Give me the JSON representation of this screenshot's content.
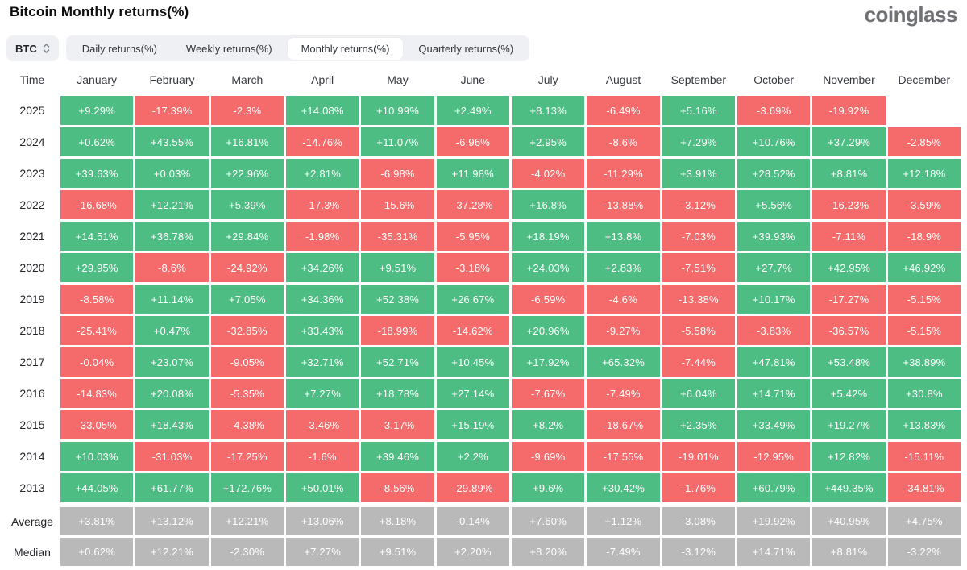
{
  "header": {
    "title": "Bitcoin Monthly returns(%)",
    "logo": "coinglass"
  },
  "controls": {
    "coin_selector": {
      "label": "BTC",
      "icon": "sort-arrows-icon"
    },
    "tabs": [
      {
        "label": "Daily returns(%)",
        "active": false
      },
      {
        "label": "Weekly returns(%)",
        "active": false
      },
      {
        "label": "Monthly returns(%)",
        "active": true
      },
      {
        "label": "Quarterly returns(%)",
        "active": false
      }
    ]
  },
  "colors": {
    "positive": "#4dbd84",
    "negative": "#f56a6a",
    "summary": "#b9b9b9",
    "cell_text": "#ffffff"
  },
  "table": {
    "time_label": "Time",
    "months": [
      "January",
      "February",
      "March",
      "April",
      "May",
      "June",
      "July",
      "August",
      "September",
      "October",
      "November",
      "December"
    ],
    "rows": [
      {
        "label": "2025",
        "type": "year",
        "values": [
          "+9.29%",
          "-17.39%",
          "-2.3%",
          "+14.08%",
          "+10.99%",
          "+2.49%",
          "+8.13%",
          "-6.49%",
          "+5.16%",
          "-3.69%",
          "-19.92%",
          null
        ]
      },
      {
        "label": "2024",
        "type": "year",
        "values": [
          "+0.62%",
          "+43.55%",
          "+16.81%",
          "-14.76%",
          "+11.07%",
          "-6.96%",
          "+2.95%",
          "-8.6%",
          "+7.29%",
          "+10.76%",
          "+37.29%",
          "-2.85%"
        ]
      },
      {
        "label": "2023",
        "type": "year",
        "values": [
          "+39.63%",
          "+0.03%",
          "+22.96%",
          "+2.81%",
          "-6.98%",
          "+11.98%",
          "-4.02%",
          "-11.29%",
          "+3.91%",
          "+28.52%",
          "+8.81%",
          "+12.18%"
        ]
      },
      {
        "label": "2022",
        "type": "year",
        "values": [
          "-16.68%",
          "+12.21%",
          "+5.39%",
          "-17.3%",
          "-15.6%",
          "-37.28%",
          "+16.8%",
          "-13.88%",
          "-3.12%",
          "+5.56%",
          "-16.23%",
          "-3.59%"
        ]
      },
      {
        "label": "2021",
        "type": "year",
        "values": [
          "+14.51%",
          "+36.78%",
          "+29.84%",
          "-1.98%",
          "-35.31%",
          "-5.95%",
          "+18.19%",
          "+13.8%",
          "-7.03%",
          "+39.93%",
          "-7.11%",
          "-18.9%"
        ]
      },
      {
        "label": "2020",
        "type": "year",
        "values": [
          "+29.95%",
          "-8.6%",
          "-24.92%",
          "+34.26%",
          "+9.51%",
          "-3.18%",
          "+24.03%",
          "+2.83%",
          "-7.51%",
          "+27.7%",
          "+42.95%",
          "+46.92%"
        ]
      },
      {
        "label": "2019",
        "type": "year",
        "values": [
          "-8.58%",
          "+11.14%",
          "+7.05%",
          "+34.36%",
          "+52.38%",
          "+26.67%",
          "-6.59%",
          "-4.6%",
          "-13.38%",
          "+10.17%",
          "-17.27%",
          "-5.15%"
        ]
      },
      {
        "label": "2018",
        "type": "year",
        "values": [
          "-25.41%",
          "+0.47%",
          "-32.85%",
          "+33.43%",
          "-18.99%",
          "-14.62%",
          "+20.96%",
          "-9.27%",
          "-5.58%",
          "-3.83%",
          "-36.57%",
          "-5.15%"
        ]
      },
      {
        "label": "2017",
        "type": "year",
        "values": [
          "-0.04%",
          "+23.07%",
          "-9.05%",
          "+32.71%",
          "+52.71%",
          "+10.45%",
          "+17.92%",
          "+65.32%",
          "-7.44%",
          "+47.81%",
          "+53.48%",
          "+38.89%"
        ]
      },
      {
        "label": "2016",
        "type": "year",
        "values": [
          "-14.83%",
          "+20.08%",
          "-5.35%",
          "+7.27%",
          "+18.78%",
          "+27.14%",
          "-7.67%",
          "-7.49%",
          "+6.04%",
          "+14.71%",
          "+5.42%",
          "+30.8%"
        ]
      },
      {
        "label": "2015",
        "type": "year",
        "values": [
          "-33.05%",
          "+18.43%",
          "-4.38%",
          "-3.46%",
          "-3.17%",
          "+15.19%",
          "+8.2%",
          "-18.67%",
          "+2.35%",
          "+33.49%",
          "+19.27%",
          "+13.83%"
        ]
      },
      {
        "label": "2014",
        "type": "year",
        "values": [
          "+10.03%",
          "-31.03%",
          "-17.25%",
          "-1.6%",
          "+39.46%",
          "+2.2%",
          "-9.69%",
          "-17.55%",
          "-19.01%",
          "-12.95%",
          "+12.82%",
          "-15.11%"
        ]
      },
      {
        "label": "2013",
        "type": "year",
        "values": [
          "+44.05%",
          "+61.77%",
          "+172.76%",
          "+50.01%",
          "-8.56%",
          "-29.89%",
          "+9.6%",
          "+30.42%",
          "-1.76%",
          "+60.79%",
          "+449.35%",
          "-34.81%"
        ]
      },
      {
        "label": "Average",
        "type": "summary",
        "values": [
          "+3.81%",
          "+13.12%",
          "+12.21%",
          "+13.06%",
          "+8.18%",
          "-0.14%",
          "+7.60%",
          "+1.12%",
          "-3.08%",
          "+19.92%",
          "+40.95%",
          "+4.75%"
        ]
      },
      {
        "label": "Median",
        "type": "summary",
        "values": [
          "+0.62%",
          "+12.21%",
          "-2.30%",
          "+7.27%",
          "+9.51%",
          "+2.20%",
          "+8.20%",
          "-7.49%",
          "-3.12%",
          "+14.71%",
          "+8.81%",
          "-3.22%"
        ]
      }
    ]
  }
}
